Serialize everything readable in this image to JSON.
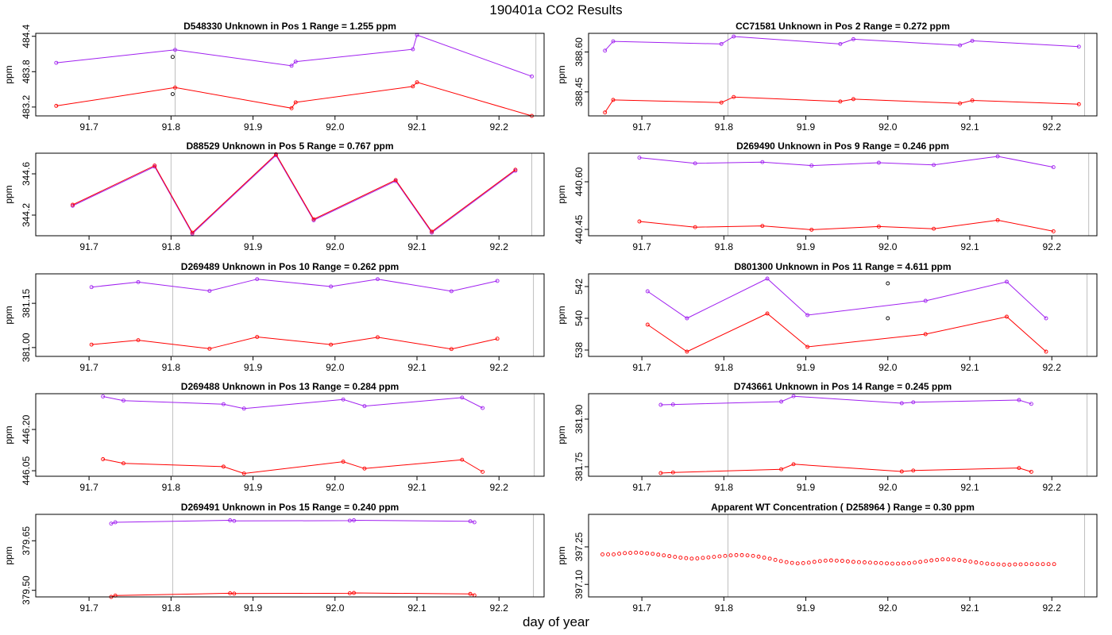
{
  "figure": {
    "title": "190401a  CO2 Results",
    "xlabel": "day of year",
    "x_ticks": [
      91.7,
      91.8,
      91.9,
      92.0,
      92.1,
      92.2
    ],
    "x_tick_labels": [
      "91.7",
      "91.8",
      "91.9",
      "92.0",
      "92.1",
      "92.2"
    ],
    "xlim": [
      91.635,
      92.255
    ]
  },
  "colors": {
    "upper_series": "#a020f0",
    "lower_series": "#ff0000",
    "reference": "#000000",
    "vline": "#bebebe",
    "axis": "#000000"
  },
  "chart_data": [
    {
      "type": "line",
      "title": "D548330    Unknown in Pos 1          Range =  1.255 ppm",
      "ylabel": "ppm",
      "ylim": [
        483.05,
        484.45
      ],
      "yticks": [
        483.2,
        483.8,
        484.4
      ],
      "ytick_labels": [
        "483.2",
        "483.8",
        "484.4"
      ],
      "vlines": [
        91.805,
        92.245
      ],
      "series": [
        {
          "name": "upper",
          "color": "upper",
          "x": [
            91.66,
            91.805,
            91.947,
            91.952,
            92.095,
            92.1,
            92.24
          ],
          "y": [
            483.95,
            484.17,
            483.9,
            483.97,
            484.18,
            484.42,
            483.72
          ]
        },
        {
          "name": "lower",
          "color": "lower",
          "x": [
            91.66,
            91.805,
            91.947,
            91.952,
            92.095,
            92.1,
            92.24
          ],
          "y": [
            483.22,
            483.53,
            483.18,
            483.28,
            483.55,
            483.62,
            483.05
          ]
        }
      ],
      "points": [
        {
          "x": 91.802,
          "y": 484.05
        },
        {
          "x": 91.802,
          "y": 483.42
        }
      ]
    },
    {
      "type": "line",
      "title": "CC71581    Unknown in Pos 2          Range =  0.272 ppm",
      "ylabel": "ppm",
      "ylim": [
        388.36,
        388.67
      ],
      "yticks": [
        388.45,
        388.6
      ],
      "ytick_labels": [
        "388.45",
        "388.60"
      ],
      "vlines": [
        91.805,
        92.24
      ],
      "series": [
        {
          "name": "upper",
          "color": "upper",
          "x": [
            91.655,
            91.665,
            91.797,
            91.812,
            91.942,
            91.958,
            92.088,
            92.103,
            92.233
          ],
          "y": [
            388.605,
            388.64,
            388.63,
            388.658,
            388.63,
            388.648,
            388.625,
            388.642,
            388.62
          ]
        },
        {
          "name": "lower",
          "color": "lower",
          "x": [
            91.655,
            91.665,
            91.797,
            91.812,
            91.942,
            91.958,
            92.088,
            92.103,
            92.233
          ],
          "y": [
            388.373,
            388.42,
            388.41,
            388.431,
            388.414,
            388.423,
            388.407,
            388.418,
            388.404
          ]
        }
      ],
      "points": []
    },
    {
      "type": "line",
      "title": "D88529    Unknown in Pos 5          Range =  0.767 ppm",
      "ylabel": "ppm",
      "ylim": [
        344.0,
        344.8
      ],
      "yticks": [
        344.2,
        344.6
      ],
      "ytick_labels": [
        "344.2",
        "344.6"
      ],
      "vlines": [
        91.8,
        92.24
      ],
      "series": [
        {
          "name": "upper",
          "color": "upper",
          "x": [
            91.68,
            91.78,
            91.826,
            91.928,
            91.974,
            92.074,
            92.118,
            92.22
          ],
          "y": [
            344.29,
            344.67,
            344.02,
            344.78,
            344.15,
            344.53,
            344.03,
            344.63
          ]
        },
        {
          "name": "lower",
          "color": "lower",
          "x": [
            91.68,
            91.78,
            91.826,
            91.928,
            91.974,
            92.074,
            92.118,
            92.22
          ],
          "y": [
            344.3,
            344.68,
            344.03,
            344.79,
            344.16,
            344.54,
            344.04,
            344.64
          ]
        }
      ],
      "points": []
    },
    {
      "type": "line",
      "title": "D269490    Unknown in Pos 9          Range =  0.246 ppm",
      "ylabel": "ppm",
      "ylim": [
        440.43,
        440.69
      ],
      "yticks": [
        440.45,
        440.6
      ],
      "ytick_labels": [
        "440.45",
        "440.60"
      ],
      "vlines": [
        91.805,
        92.245
      ],
      "series": [
        {
          "name": "upper",
          "color": "upper",
          "x": [
            91.697,
            91.765,
            91.847,
            91.907,
            91.989,
            92.056,
            92.134,
            92.202
          ],
          "y": [
            440.676,
            440.658,
            440.662,
            440.651,
            440.66,
            440.653,
            440.68,
            440.646
          ]
        },
        {
          "name": "lower",
          "color": "lower",
          "x": [
            91.697,
            91.765,
            91.847,
            91.907,
            91.989,
            92.056,
            92.134,
            92.202
          ],
          "y": [
            440.475,
            440.457,
            440.461,
            440.449,
            440.459,
            440.452,
            440.479,
            440.444
          ]
        }
      ],
      "points": []
    },
    {
      "type": "line",
      "title": "D269489    Unknown in Pos 10          Range =  0.262 ppm",
      "ylabel": "ppm",
      "ylim": [
        380.97,
        381.25
      ],
      "yticks": [
        381.0,
        381.15
      ],
      "ytick_labels": [
        "381.00",
        "381.15"
      ],
      "vlines": [
        91.802,
        92.242
      ],
      "series": [
        {
          "name": "upper",
          "color": "upper",
          "x": [
            91.703,
            91.76,
            91.847,
            91.905,
            91.995,
            92.052,
            92.142,
            92.198
          ],
          "y": [
            381.205,
            381.222,
            381.192,
            381.232,
            381.207,
            381.232,
            381.191,
            381.226
          ]
        },
        {
          "name": "lower",
          "color": "lower",
          "x": [
            91.703,
            91.76,
            91.847,
            91.905,
            91.995,
            92.052,
            92.142,
            92.198
          ],
          "y": [
            381.01,
            381.025,
            380.996,
            381.036,
            381.01,
            381.035,
            380.995,
            381.03
          ]
        }
      ],
      "points": []
    },
    {
      "type": "line",
      "title": "D801300    Unknown in Pos 11          Range =  4.611 ppm",
      "ylabel": "ppm",
      "ylim": [
        537.6,
        542.8
      ],
      "yticks": [
        538,
        540,
        542
      ],
      "ytick_labels": [
        "538",
        "540",
        "542"
      ],
      "vlines": [
        92.243
      ],
      "series": [
        {
          "name": "upper",
          "color": "upper",
          "x": [
            91.707,
            91.755,
            91.853,
            91.902,
            92.046,
            92.145,
            92.193
          ],
          "y": [
            541.7,
            540.0,
            542.5,
            540.2,
            541.1,
            542.3,
            540.0
          ]
        },
        {
          "name": "lower",
          "color": "lower",
          "x": [
            91.707,
            91.755,
            91.853,
            91.902,
            92.046,
            92.145,
            92.193
          ],
          "y": [
            539.6,
            537.9,
            540.3,
            538.2,
            539.0,
            540.1,
            537.9
          ]
        }
      ],
      "points": [
        {
          "x": 92.0,
          "y": 542.2
        },
        {
          "x": 92.0,
          "y": 540.0
        }
      ]
    },
    {
      "type": "line",
      "title": "D269488    Unknown in Pos 13          Range =  0.284 ppm",
      "ylabel": "ppm",
      "ylim": [
        446.03,
        446.33
      ],
      "yticks": [
        446.05,
        446.2
      ],
      "ytick_labels": [
        "446.05",
        "446.20"
      ],
      "vlines": [
        91.802,
        92.243
      ],
      "series": [
        {
          "name": "upper",
          "color": "upper",
          "x": [
            91.717,
            91.742,
            91.864,
            91.889,
            92.01,
            92.036,
            92.155,
            92.18
          ],
          "y": [
            446.32,
            446.305,
            446.292,
            446.276,
            446.309,
            446.285,
            446.316,
            446.278
          ]
        },
        {
          "name": "lower",
          "color": "lower",
          "x": [
            91.717,
            91.742,
            91.864,
            91.889,
            92.01,
            92.036,
            92.155,
            92.18
          ],
          "y": [
            446.092,
            446.077,
            446.065,
            446.04,
            446.083,
            446.058,
            446.09,
            446.046
          ]
        }
      ],
      "points": []
    },
    {
      "type": "line",
      "title": "D743661    Unknown in Pos 14          Range =  0.245 ppm",
      "ylabel": "ppm",
      "ylim": [
        381.72,
        381.98
      ],
      "yticks": [
        381.75,
        381.9
      ],
      "ytick_labels": [
        "381.75",
        "381.90"
      ],
      "vlines": [
        91.805,
        92.243
      ],
      "series": [
        {
          "name": "upper",
          "color": "upper",
          "x": [
            91.723,
            91.738,
            91.87,
            91.885,
            92.017,
            92.031,
            92.16,
            92.175
          ],
          "y": [
            381.945,
            381.946,
            381.955,
            381.972,
            381.95,
            381.953,
            381.96,
            381.948
          ]
        },
        {
          "name": "lower",
          "color": "lower",
          "x": [
            91.723,
            91.738,
            91.87,
            91.885,
            92.017,
            92.031,
            92.16,
            92.175
          ],
          "y": [
            381.73,
            381.732,
            381.742,
            381.758,
            381.735,
            381.738,
            381.746,
            381.734
          ]
        }
      ],
      "points": []
    },
    {
      "type": "line",
      "title": "D269491    Unknown in Pos 15          Range =  0.240 ppm",
      "ylabel": "ppm",
      "ylim": [
        379.48,
        379.73
      ],
      "yticks": [
        379.5,
        379.65
      ],
      "ytick_labels": [
        "379.50",
        "379.65"
      ],
      "vlines": [
        91.802,
        92.242
      ],
      "series": [
        {
          "name": "upper",
          "color": "upper",
          "x": [
            91.727,
            91.732,
            91.872,
            91.877,
            92.018,
            92.023,
            92.165,
            92.17
          ],
          "y": [
            379.702,
            379.706,
            379.712,
            379.71,
            379.711,
            379.712,
            379.709,
            379.706
          ]
        },
        {
          "name": "lower",
          "color": "lower",
          "x": [
            91.727,
            91.732,
            91.872,
            91.877,
            92.018,
            92.023,
            92.165,
            92.17
          ],
          "y": [
            379.48,
            379.484,
            379.491,
            379.49,
            379.491,
            379.492,
            379.489,
            379.485
          ]
        }
      ],
      "points": []
    },
    {
      "type": "scatter",
      "title": "Apparent WT Concentration ( D258964 )          Range = 0.30 ppm",
      "ylabel": "ppm",
      "ylim": [
        397.05,
        397.38
      ],
      "yticks": [
        397.1,
        397.25
      ],
      "ytick_labels": [
        "397.10",
        "397.25"
      ],
      "vlines": [
        91.805,
        92.24
      ],
      "wt_series": {
        "color": "lower",
        "x_start": 91.652,
        "x_step": 0.0068,
        "y": [
          397.22,
          397.22,
          397.22,
          397.223,
          397.225,
          397.226,
          397.227,
          397.226,
          397.224,
          397.222,
          397.219,
          397.216,
          397.213,
          397.21,
          397.207,
          397.205,
          397.203,
          397.204,
          397.206,
          397.208,
          397.21,
          397.212,
          397.214,
          397.216,
          397.217,
          397.217,
          397.216,
          397.214,
          397.211,
          397.207,
          397.203,
          397.198,
          397.193,
          397.189,
          397.186,
          397.184,
          397.185,
          397.187,
          397.19,
          397.193,
          397.195,
          397.196,
          397.195,
          397.194,
          397.192,
          397.19,
          397.189,
          397.188,
          397.187,
          397.186,
          397.185,
          397.184,
          397.183,
          397.183,
          397.184,
          397.185,
          397.187,
          397.19,
          397.193,
          397.196,
          397.198,
          397.2,
          397.2,
          397.199,
          397.197,
          397.194,
          397.191,
          397.188,
          397.185,
          397.183,
          397.181,
          397.18,
          397.179,
          397.179,
          397.18,
          397.18,
          397.181,
          397.181,
          397.181,
          397.181,
          397.181,
          397.181
        ]
      },
      "series": [],
      "points": []
    }
  ]
}
